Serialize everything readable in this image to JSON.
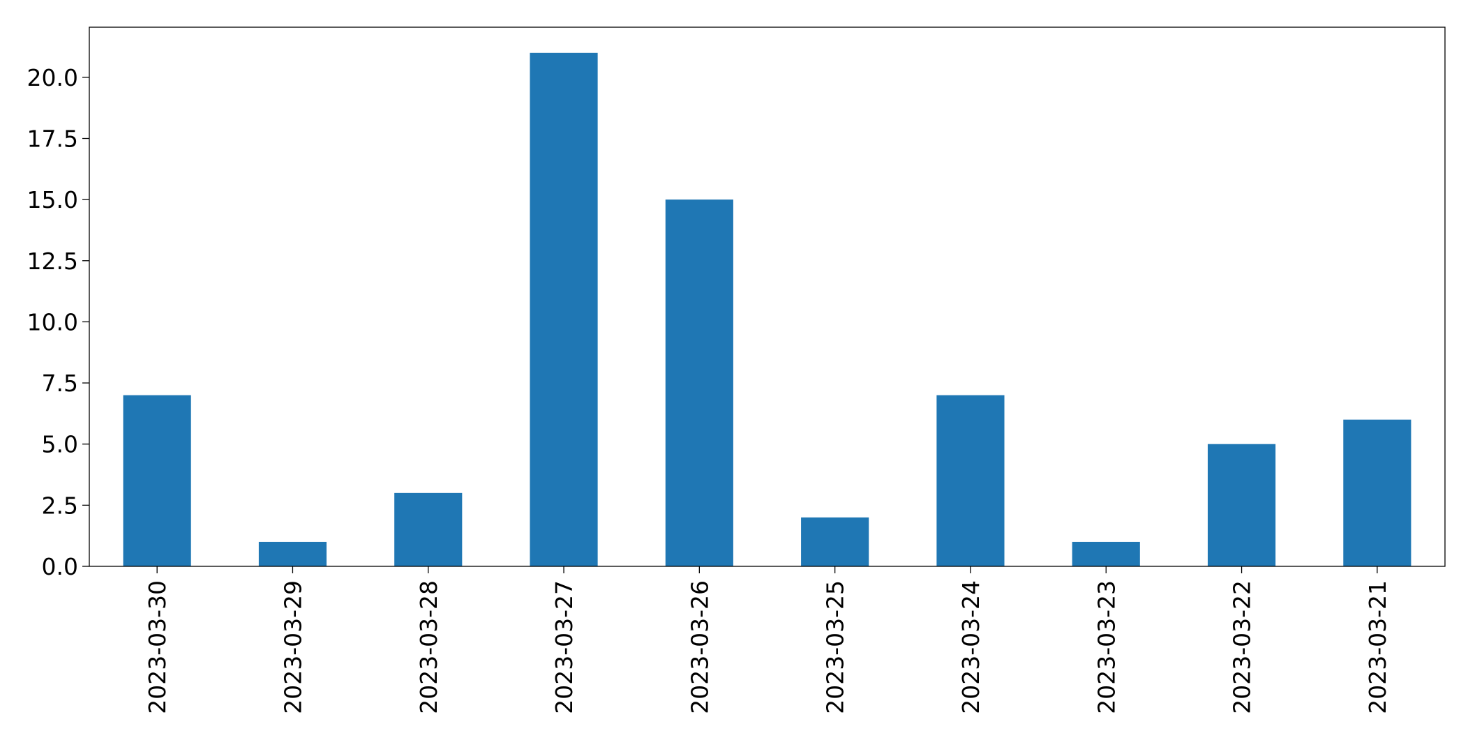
{
  "chart_data": {
    "type": "bar",
    "title": "",
    "xlabel": "",
    "ylabel": "",
    "categories": [
      "2023-03-30",
      "2023-03-29",
      "2023-03-28",
      "2023-03-27",
      "2023-03-26",
      "2023-03-25",
      "2023-03-24",
      "2023-03-23",
      "2023-03-22",
      "2023-03-21"
    ],
    "values": [
      7,
      1,
      3,
      21,
      15,
      2,
      7,
      1,
      5,
      6
    ],
    "ylim": [
      0,
      22.05
    ],
    "yticks": [
      0,
      2.5,
      5,
      7.5,
      10,
      12.5,
      15,
      17.5,
      20
    ],
    "ytick_labels": [
      "0.0",
      "2.5",
      "5.0",
      "7.5",
      "10.0",
      "12.5",
      "15.0",
      "17.5",
      "20.0"
    ],
    "bar_color": "#1f77b4",
    "grid": false,
    "legend": "none"
  }
}
